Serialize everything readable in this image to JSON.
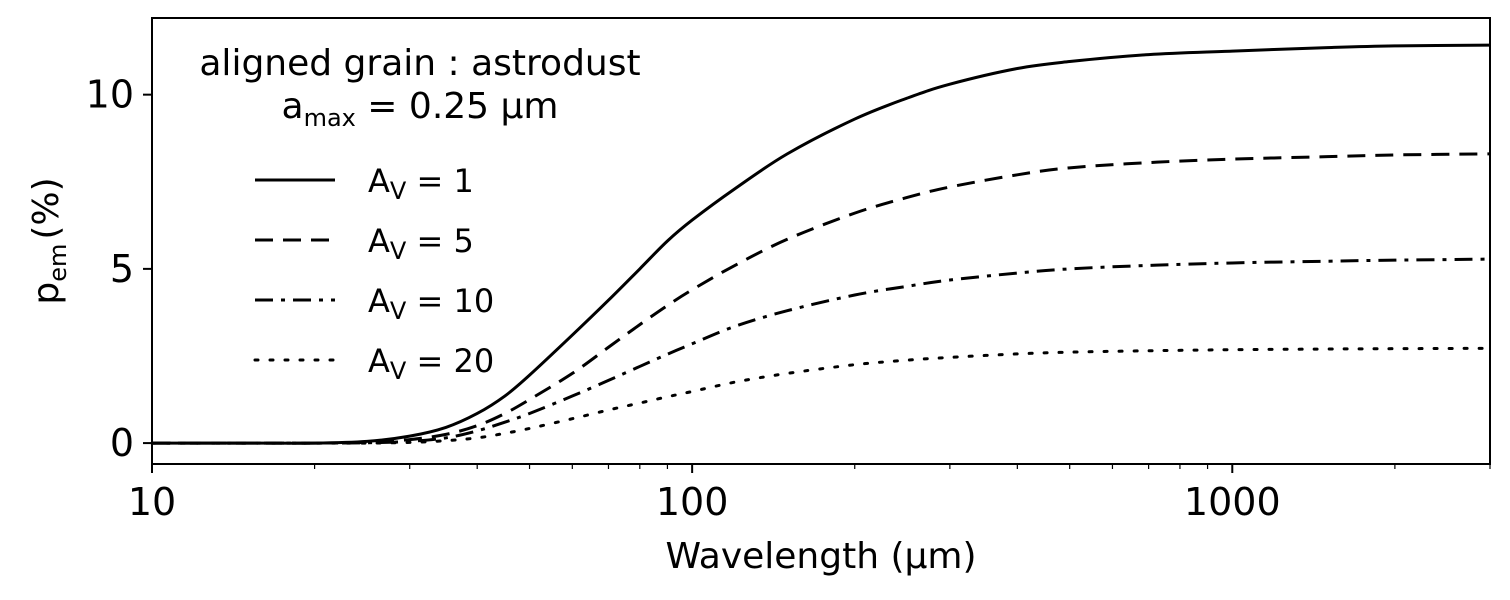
{
  "chart_data": {
    "type": "line",
    "xlabel": "Wavelength (μm)",
    "ylabel": "p",
    "ylabel_subscript": "em",
    "ylabel_unit": "(%)",
    "xscale": "log",
    "xlim": [
      10,
      3000
    ],
    "ylim": [
      -0.6,
      12.2
    ],
    "x_ticks": [
      10,
      100,
      1000
    ],
    "x_tick_labels": [
      "10",
      "100",
      "1000"
    ],
    "y_ticks": [
      0,
      5,
      10
    ],
    "y_tick_labels": [
      "0",
      "5",
      "10"
    ],
    "grid": false,
    "annotation": {
      "line1": "aligned grain : astrodust",
      "line2_prefix": "a",
      "line2_subscript": "max",
      "line2_suffix": " = 0.25 μm"
    },
    "legend_position": "upper-left",
    "x": [
      10,
      15,
      20,
      25,
      30,
      35,
      40,
      45,
      50,
      60,
      70,
      80,
      90,
      100,
      120,
      150,
      200,
      250,
      300,
      400,
      500,
      700,
      1000,
      1500,
      2000,
      3000
    ],
    "series": [
      {
        "name": "A_V = 1",
        "label_main": "A",
        "label_sub": "V",
        "label_value": " = 1",
        "style": "solid",
        "values": [
          0,
          0,
          0,
          0.05,
          0.2,
          0.45,
          0.85,
          1.35,
          1.95,
          3.1,
          4.1,
          5.0,
          5.8,
          6.4,
          7.3,
          8.3,
          9.3,
          9.9,
          10.3,
          10.75,
          10.95,
          11.15,
          11.25,
          11.35,
          11.4,
          11.42
        ]
      },
      {
        "name": "A_V = 5",
        "label_main": "A",
        "label_sub": "V",
        "label_value": " = 5",
        "style": "dashed",
        "values": [
          0,
          0,
          0,
          0.02,
          0.1,
          0.25,
          0.5,
          0.85,
          1.25,
          2.0,
          2.75,
          3.4,
          3.95,
          4.4,
          5.1,
          5.85,
          6.6,
          7.05,
          7.35,
          7.7,
          7.9,
          8.05,
          8.15,
          8.22,
          8.27,
          8.3
        ]
      },
      {
        "name": "A_V = 10",
        "label_main": "A",
        "label_sub": "V",
        "label_value": " = 10",
        "style": "dashdot",
        "values": [
          0,
          0,
          0,
          0.01,
          0.05,
          0.15,
          0.35,
          0.6,
          0.85,
          1.35,
          1.8,
          2.2,
          2.55,
          2.85,
          3.35,
          3.8,
          4.25,
          4.5,
          4.68,
          4.88,
          5.0,
          5.1,
          5.17,
          5.22,
          5.25,
          5.28
        ]
      },
      {
        "name": "A_V = 20",
        "label_main": "A",
        "label_sub": "V",
        "label_value": " = 20",
        "style": "dotted",
        "values": [
          0,
          0,
          0,
          0,
          0.02,
          0.07,
          0.15,
          0.28,
          0.42,
          0.7,
          0.95,
          1.15,
          1.33,
          1.48,
          1.75,
          2.0,
          2.25,
          2.38,
          2.46,
          2.56,
          2.61,
          2.65,
          2.68,
          2.7,
          2.71,
          2.72
        ]
      }
    ]
  }
}
